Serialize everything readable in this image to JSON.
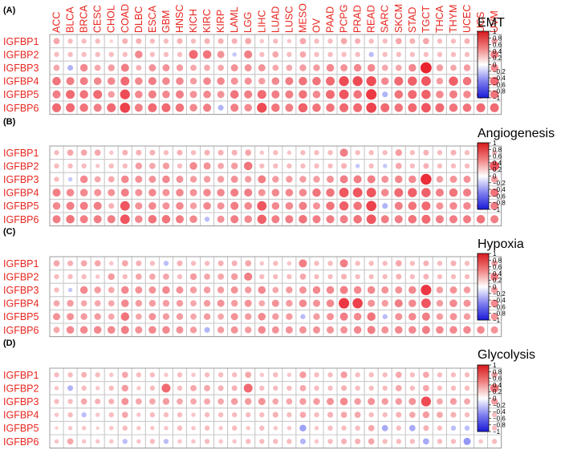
{
  "figure": {
    "columns": [
      "ACC",
      "BLCA",
      "BRCA",
      "CESC",
      "CHOL",
      "COAD",
      "DLBC",
      "ESCA",
      "GBM",
      "HNSC",
      "KICH",
      "KIRC",
      "KIRP",
      "LAML",
      "LGG",
      "LIHC",
      "LUAD",
      "LUSC",
      "MESO",
      "OV",
      "PAAD",
      "PCPG",
      "PRAD",
      "READ",
      "SARC",
      "SKCM",
      "STAD",
      "TGCT",
      "THCA",
      "THYM",
      "UCEC",
      "UCS",
      "UVM"
    ],
    "rows": [
      "IGFBP1",
      "IGFBP2",
      "IGFBP3",
      "IGFBP4",
      "IGFBP5",
      "IGFBP6"
    ],
    "colorbar_ticks": [
      "1",
      "0.8",
      "0.6",
      "0.4",
      "0.2",
      "0",
      "−0.2",
      "−0.4",
      "−0.6",
      "−0.8",
      "−1"
    ],
    "colors": {
      "positive": "#e8131f",
      "negative": "#1520e6",
      "label": "#e8261f"
    }
  },
  "chart_data": [
    {
      "type": "heatmap",
      "panel_label": "(A)",
      "title": "EMT",
      "value_range": [
        -1,
        1
      ],
      "values": [
        [
          0.3,
          0.2,
          0.2,
          0.2,
          0.1,
          0.25,
          0.25,
          0.2,
          0.2,
          0.25,
          0.2,
          0.25,
          0.25,
          0.25,
          0.3,
          0.15,
          0.2,
          0.15,
          0.3,
          0.2,
          0.2,
          0.3,
          0.25,
          0.2,
          0.2,
          0.3,
          0.25,
          0.3,
          0.2,
          0.2,
          0.25,
          0.2,
          0.3
        ],
        [
          0.2,
          0.2,
          0.2,
          0.2,
          0.2,
          0.2,
          0.45,
          0.2,
          0.2,
          0.2,
          0.6,
          0.55,
          0.4,
          -0.15,
          0.5,
          0.2,
          0.3,
          0.2,
          0.3,
          0.2,
          0.2,
          0.2,
          0.2,
          -0.2,
          0.2,
          0.2,
          0.2,
          0.2,
          0.2,
          0.2,
          0.2,
          0.2,
          0.5
        ],
        [
          0.3,
          -0.25,
          0.45,
          0.3,
          0.35,
          0.5,
          0.25,
          0.4,
          0.4,
          0.35,
          0.3,
          0.3,
          0.3,
          0.4,
          0.4,
          0.4,
          0.3,
          0.3,
          0.35,
          0.35,
          0.45,
          0.4,
          0.45,
          0.45,
          0.3,
          0.3,
          0.45,
          0.95,
          0.35,
          0.3,
          0.35,
          0.3,
          0.45
        ],
        [
          0.55,
          0.5,
          0.5,
          0.45,
          0.45,
          0.6,
          0.45,
          0.5,
          0.45,
          0.45,
          0.35,
          0.45,
          0.45,
          0.4,
          0.4,
          0.35,
          0.45,
          0.5,
          0.55,
          0.55,
          0.6,
          0.75,
          0.75,
          0.75,
          0.45,
          0.6,
          0.65,
          0.7,
          0.35,
          0.65,
          0.55,
          0.45,
          0.6
        ],
        [
          0.5,
          0.6,
          0.55,
          0.6,
          0.35,
          0.75,
          0.45,
          0.5,
          0.45,
          0.5,
          0.4,
          0.45,
          0.4,
          0.55,
          0.5,
          0.6,
          0.5,
          0.5,
          0.55,
          0.45,
          0.6,
          0.7,
          0.55,
          0.85,
          -0.25,
          0.55,
          0.6,
          0.65,
          0.45,
          0.5,
          0.45,
          0.55,
          0.55
        ],
        [
          0.6,
          0.6,
          0.55,
          0.5,
          0.6,
          0.8,
          0.5,
          0.6,
          0.6,
          0.55,
          0.45,
          0.5,
          -0.25,
          0.5,
          0.45,
          0.75,
          0.55,
          0.5,
          0.65,
          0.55,
          0.55,
          0.6,
          0.6,
          0.8,
          0.6,
          0.55,
          0.6,
          0.7,
          0.6,
          0.55,
          0.55,
          0.6,
          0.6
        ]
      ]
    },
    {
      "type": "heatmap",
      "panel_label": "(B)",
      "title": "Angiogenesis",
      "value_range": [
        -1,
        1
      ],
      "values": [
        [
          0.2,
          0.3,
          0.3,
          0.3,
          0.15,
          0.25,
          0.25,
          0.25,
          0.2,
          0.25,
          0.2,
          0.25,
          0.25,
          0.25,
          0.3,
          0.15,
          0.2,
          0.15,
          0.2,
          0.2,
          0.2,
          0.5,
          0.2,
          0.2,
          0.2,
          0.35,
          0.2,
          0.25,
          0.2,
          0.25,
          0.2,
          0.25,
          0.2
        ],
        [
          0.2,
          0.2,
          0.2,
          0.15,
          0.2,
          0.2,
          0.35,
          0.3,
          0.35,
          0.2,
          0.45,
          0.4,
          0.3,
          0.35,
          0.55,
          0.2,
          0.2,
          0.2,
          0.2,
          0.2,
          0.2,
          0.25,
          -0.15,
          0.2,
          -0.15,
          0.3,
          0.2,
          0.25,
          0.2,
          0.2,
          0.2,
          0.2,
          0.7
        ],
        [
          0.2,
          -0.15,
          0.45,
          0.3,
          0.3,
          0.45,
          0.4,
          0.4,
          0.45,
          0.4,
          0.35,
          0.35,
          0.35,
          0.4,
          0.35,
          0.5,
          0.35,
          0.35,
          0.35,
          0.35,
          0.4,
          0.5,
          0.5,
          0.5,
          0.4,
          0.45,
          0.45,
          0.9,
          0.35,
          0.4,
          0.4,
          0.35,
          0.35
        ],
        [
          0.5,
          0.45,
          0.45,
          0.4,
          0.4,
          0.5,
          0.4,
          0.45,
          0.4,
          0.45,
          0.4,
          0.45,
          0.45,
          0.5,
          0.5,
          0.4,
          0.45,
          0.45,
          0.45,
          0.55,
          0.55,
          0.7,
          0.7,
          0.7,
          0.45,
          0.6,
          0.65,
          0.65,
          0.5,
          0.55,
          0.5,
          0.45,
          0.55
        ],
        [
          0.45,
          0.5,
          0.5,
          0.5,
          0.25,
          0.7,
          0.4,
          0.45,
          0.4,
          0.45,
          0.35,
          0.45,
          0.4,
          0.5,
          0.45,
          0.7,
          0.45,
          0.45,
          0.5,
          0.4,
          0.55,
          0.65,
          0.55,
          0.8,
          -0.25,
          0.5,
          0.55,
          0.6,
          0.4,
          0.45,
          0.45,
          0.5,
          0.5
        ],
        [
          0.5,
          0.55,
          0.5,
          0.5,
          0.5,
          0.7,
          0.45,
          0.55,
          0.55,
          0.5,
          0.45,
          -0.2,
          0.4,
          0.5,
          0.45,
          0.65,
          0.5,
          0.5,
          0.55,
          0.5,
          0.5,
          0.5,
          0.55,
          0.7,
          0.5,
          0.5,
          0.55,
          0.6,
          0.5,
          0.5,
          0.5,
          0.55,
          0.5
        ]
      ]
    },
    {
      "type": "heatmap",
      "panel_label": "(C)",
      "title": "Hypoxia",
      "value_range": [
        -1,
        1
      ],
      "values": [
        [
          0.3,
          0.25,
          0.3,
          0.3,
          0.15,
          0.3,
          0.25,
          0.2,
          -0.2,
          0.25,
          0.2,
          0.2,
          0.25,
          0.25,
          0.3,
          0.15,
          0.2,
          0.15,
          0.5,
          0.2,
          0.2,
          0.5,
          0.2,
          0.2,
          0.2,
          0.3,
          0.2,
          0.25,
          0.2,
          0.25,
          0.2,
          0.25,
          0.3
        ],
        [
          0.2,
          0.2,
          0.2,
          0.15,
          0.35,
          0.2,
          0.3,
          0.3,
          0.3,
          0.2,
          0.35,
          0.3,
          0.3,
          0.35,
          0.5,
          0.2,
          0.2,
          0.2,
          0.3,
          0.2,
          0.2,
          0.25,
          0.2,
          0.2,
          0.2,
          0.25,
          0.2,
          0.25,
          0.2,
          0.2,
          0.2,
          0.35,
          0.5
        ],
        [
          0.2,
          -0.15,
          0.45,
          0.35,
          0.3,
          0.45,
          0.4,
          0.4,
          0.45,
          0.4,
          0.35,
          0.35,
          0.35,
          0.4,
          0.35,
          0.45,
          0.3,
          0.35,
          0.4,
          0.45,
          0.45,
          0.5,
          0.45,
          0.45,
          0.4,
          0.4,
          0.45,
          0.85,
          0.35,
          0.4,
          0.35,
          0.35,
          0.35
        ],
        [
          0.3,
          0.35,
          0.3,
          0.3,
          0.3,
          0.45,
          0.35,
          0.35,
          0.35,
          0.35,
          0.3,
          0.35,
          0.4,
          0.35,
          0.4,
          0.3,
          0.4,
          0.35,
          0.45,
          0.4,
          0.45,
          0.85,
          0.8,
          0.4,
          0.35,
          0.5,
          0.45,
          0.7,
          0.35,
          0.45,
          0.4,
          0.35,
          0.45
        ],
        [
          0.4,
          0.4,
          0.35,
          0.35,
          0.3,
          0.55,
          0.3,
          0.4,
          0.35,
          0.35,
          0.3,
          0.35,
          0.3,
          0.4,
          0.35,
          0.45,
          0.35,
          0.35,
          -0.2,
          0.35,
          0.4,
          0.5,
          0.45,
          0.55,
          -0.2,
          0.4,
          0.45,
          0.5,
          0.35,
          0.4,
          0.35,
          0.45,
          0.4
        ],
        [
          0.3,
          0.45,
          0.45,
          0.45,
          0.45,
          0.5,
          0.4,
          0.45,
          0.45,
          0.4,
          0.35,
          -0.25,
          0.35,
          0.4,
          0.35,
          0.45,
          0.4,
          0.4,
          0.4,
          0.4,
          0.4,
          0.4,
          0.45,
          0.5,
          0.4,
          0.45,
          0.45,
          0.5,
          0.45,
          0.45,
          0.45,
          0.45,
          0.4
        ]
      ]
    },
    {
      "type": "heatmap",
      "panel_label": "(D)",
      "title": "Glycolysis",
      "value_range": [
        -1,
        1
      ],
      "values": [
        [
          0.2,
          0.2,
          0.25,
          0.2,
          0.15,
          0.3,
          0.2,
          0.2,
          0.15,
          0.2,
          0.15,
          0.2,
          0.2,
          0.2,
          0.3,
          0.15,
          0.2,
          0.15,
          0.35,
          0.2,
          0.2,
          0.35,
          0.2,
          0.2,
          0.2,
          0.3,
          0.2,
          0.3,
          0.2,
          0.2,
          0.2,
          0.2,
          0.3
        ],
        [
          0.15,
          -0.25,
          0.2,
          0.15,
          0.2,
          0.35,
          0.15,
          0.2,
          0.6,
          0.2,
          0.3,
          0.3,
          0.25,
          0.25,
          0.6,
          0.2,
          0.2,
          0.2,
          0.3,
          0.2,
          0.2,
          0.25,
          0.2,
          0.2,
          0.2,
          0.3,
          0.2,
          0.3,
          0.2,
          0.2,
          0.2,
          0.35,
          0.55
        ],
        [
          0.2,
          0.2,
          0.3,
          0.25,
          0.25,
          0.4,
          0.3,
          0.3,
          0.35,
          0.3,
          0.3,
          0.3,
          0.3,
          0.35,
          0.35,
          0.4,
          0.3,
          0.3,
          0.35,
          0.35,
          0.4,
          0.45,
          0.35,
          0.4,
          0.35,
          0.35,
          0.4,
          0.75,
          0.3,
          0.35,
          0.3,
          0.3,
          0.35
        ],
        [
          0.15,
          0.2,
          -0.2,
          0.15,
          0.2,
          0.3,
          0.15,
          0.2,
          0.2,
          0.2,
          0.15,
          0.2,
          0.2,
          0.2,
          0.2,
          0.2,
          0.25,
          0.2,
          0.3,
          0.2,
          0.25,
          0.3,
          0.3,
          0.2,
          0.2,
          0.25,
          0.3,
          0.35,
          0.3,
          0.25,
          0.2,
          0.2,
          0.2
        ],
        [
          0.1,
          0.15,
          0.15,
          0.1,
          0.15,
          0.2,
          0.15,
          0.15,
          0.15,
          0.2,
          0.15,
          0.2,
          0.15,
          0.2,
          0.15,
          0.2,
          0.15,
          0.15,
          -0.35,
          0.15,
          0.2,
          0.2,
          0.2,
          0.3,
          -0.3,
          0.2,
          -0.3,
          0.25,
          0.2,
          -0.2,
          -0.2,
          0.15,
          0.2
        ],
        [
          0.15,
          0.3,
          0.15,
          0.15,
          0.15,
          -0.2,
          0.15,
          0.2,
          -0.2,
          0.15,
          0.15,
          0.2,
          0.15,
          0.15,
          0.2,
          0.2,
          0.2,
          0.2,
          -0.25,
          0.15,
          0.2,
          0.25,
          0.25,
          0.3,
          0.2,
          0.2,
          0.2,
          -0.3,
          0.2,
          0.2,
          -0.4,
          0.15,
          0.2
        ]
      ]
    }
  ]
}
